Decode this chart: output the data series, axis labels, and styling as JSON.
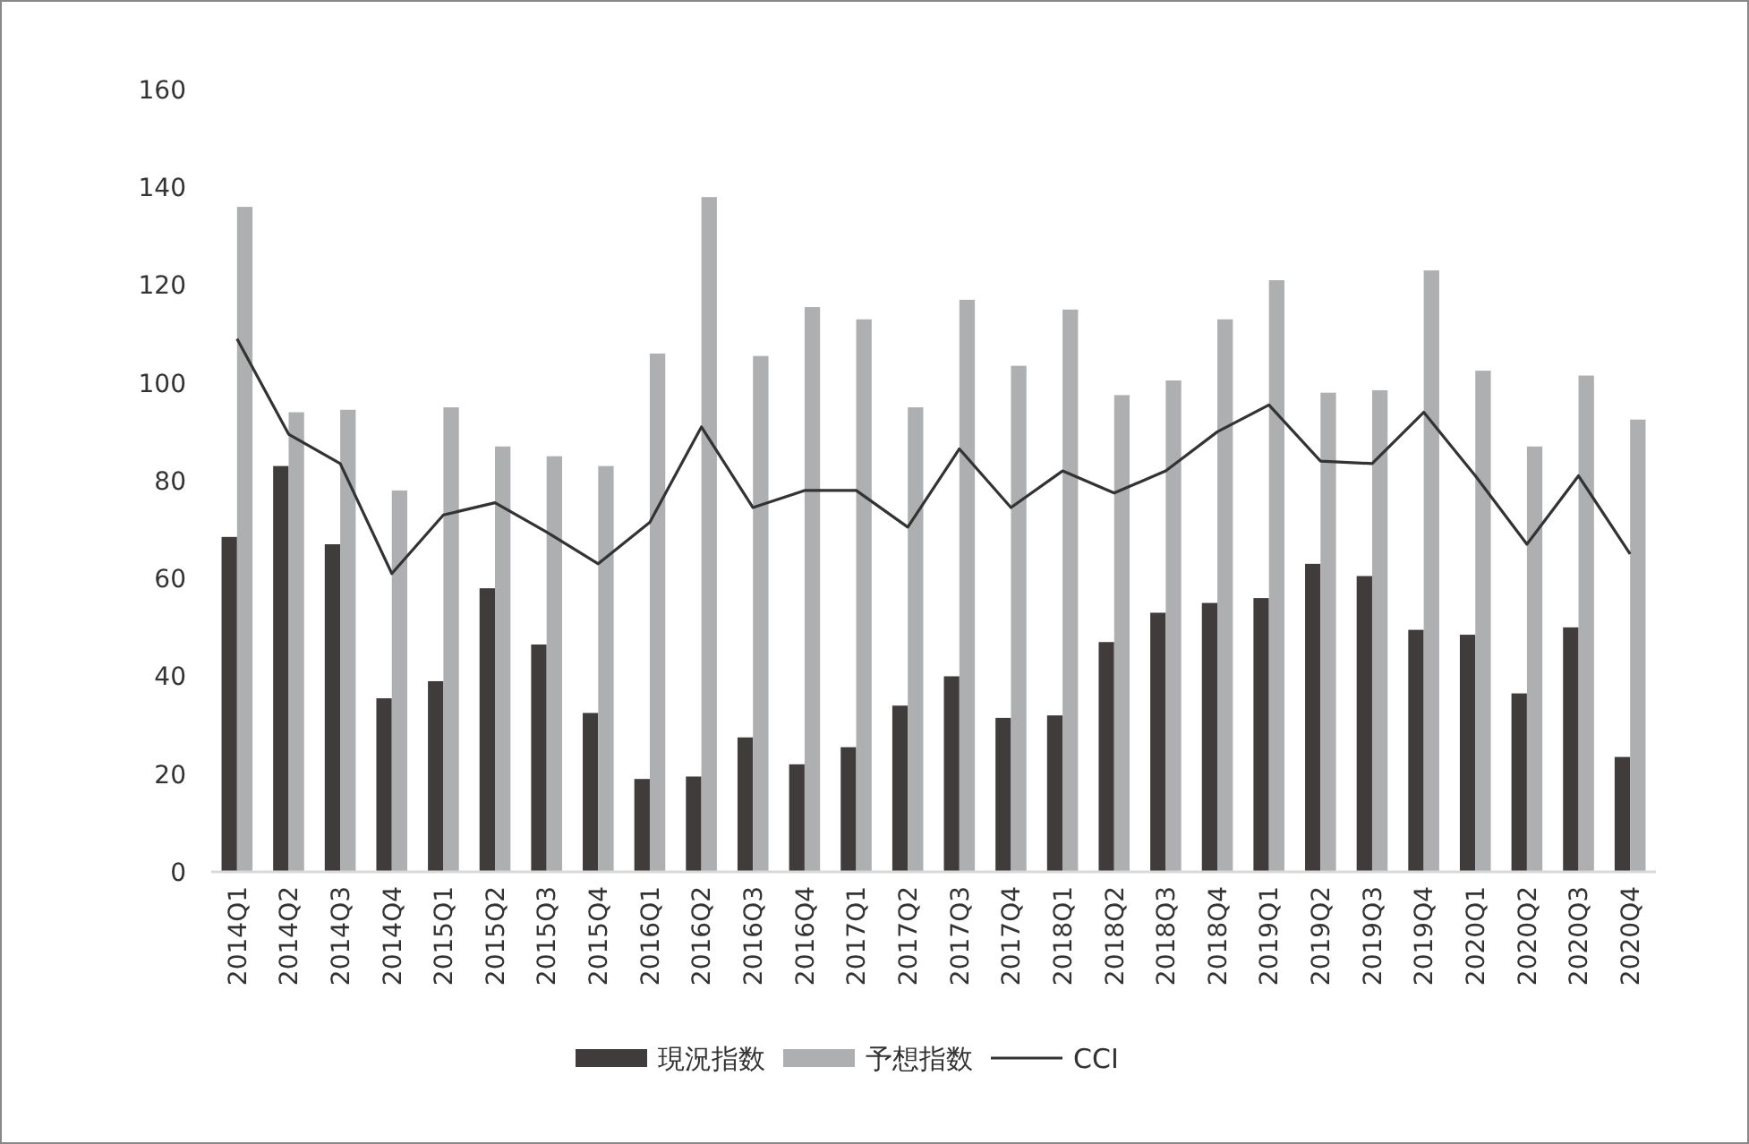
{
  "chart_data": {
    "type": "bar",
    "categories": [
      "2014Q1",
      "2014Q2",
      "2014Q3",
      "2014Q4",
      "2015Q1",
      "2015Q2",
      "2015Q3",
      "2015Q4",
      "2016Q1",
      "2016Q2",
      "2016Q3",
      "2016Q4",
      "2017Q1",
      "2017Q2",
      "2017Q3",
      "2017Q4",
      "2018Q1",
      "2018Q2",
      "2018Q3",
      "2018Q4",
      "2019Q1",
      "2019Q2",
      "2019Q3",
      "2019Q4",
      "2020Q1",
      "2020Q2",
      "2020Q3",
      "2020Q4"
    ],
    "series": [
      {
        "name": "現況指数",
        "color": "#403c3b",
        "values": [
          68.5,
          83,
          67,
          35.5,
          39,
          58,
          46.5,
          32.5,
          19,
          19.5,
          27.5,
          22,
          25.5,
          34,
          40,
          31.5,
          32,
          47,
          53,
          55,
          56,
          63,
          60.5,
          49.5,
          48.5,
          36.5,
          50,
          23.5
        ]
      },
      {
        "name": "予想指数",
        "color": "#aeafb1",
        "values": [
          136,
          94,
          94.5,
          78,
          95,
          87,
          85,
          83,
          106,
          138,
          105.5,
          115.5,
          113,
          95,
          117,
          103.5,
          115,
          97.5,
          100.5,
          113,
          121,
          98,
          98.5,
          123,
          102.5,
          87,
          101.5,
          92.5
        ]
      },
      {
        "name": "CCI",
        "type": "line",
        "color": "#333333",
        "values": [
          109,
          89.5,
          83.5,
          61,
          73,
          75.5,
          69.5,
          63,
          71.5,
          91,
          74.5,
          78,
          78,
          70.5,
          86.5,
          74.5,
          82,
          77.5,
          82,
          90,
          95.5,
          84,
          83.5,
          94,
          81,
          67,
          81,
          65
        ]
      }
    ],
    "ylim": [
      0,
      160
    ],
    "yticks": [
      0,
      20,
      40,
      60,
      80,
      100,
      120,
      140,
      160
    ],
    "grid": false,
    "legend": "bottom"
  }
}
